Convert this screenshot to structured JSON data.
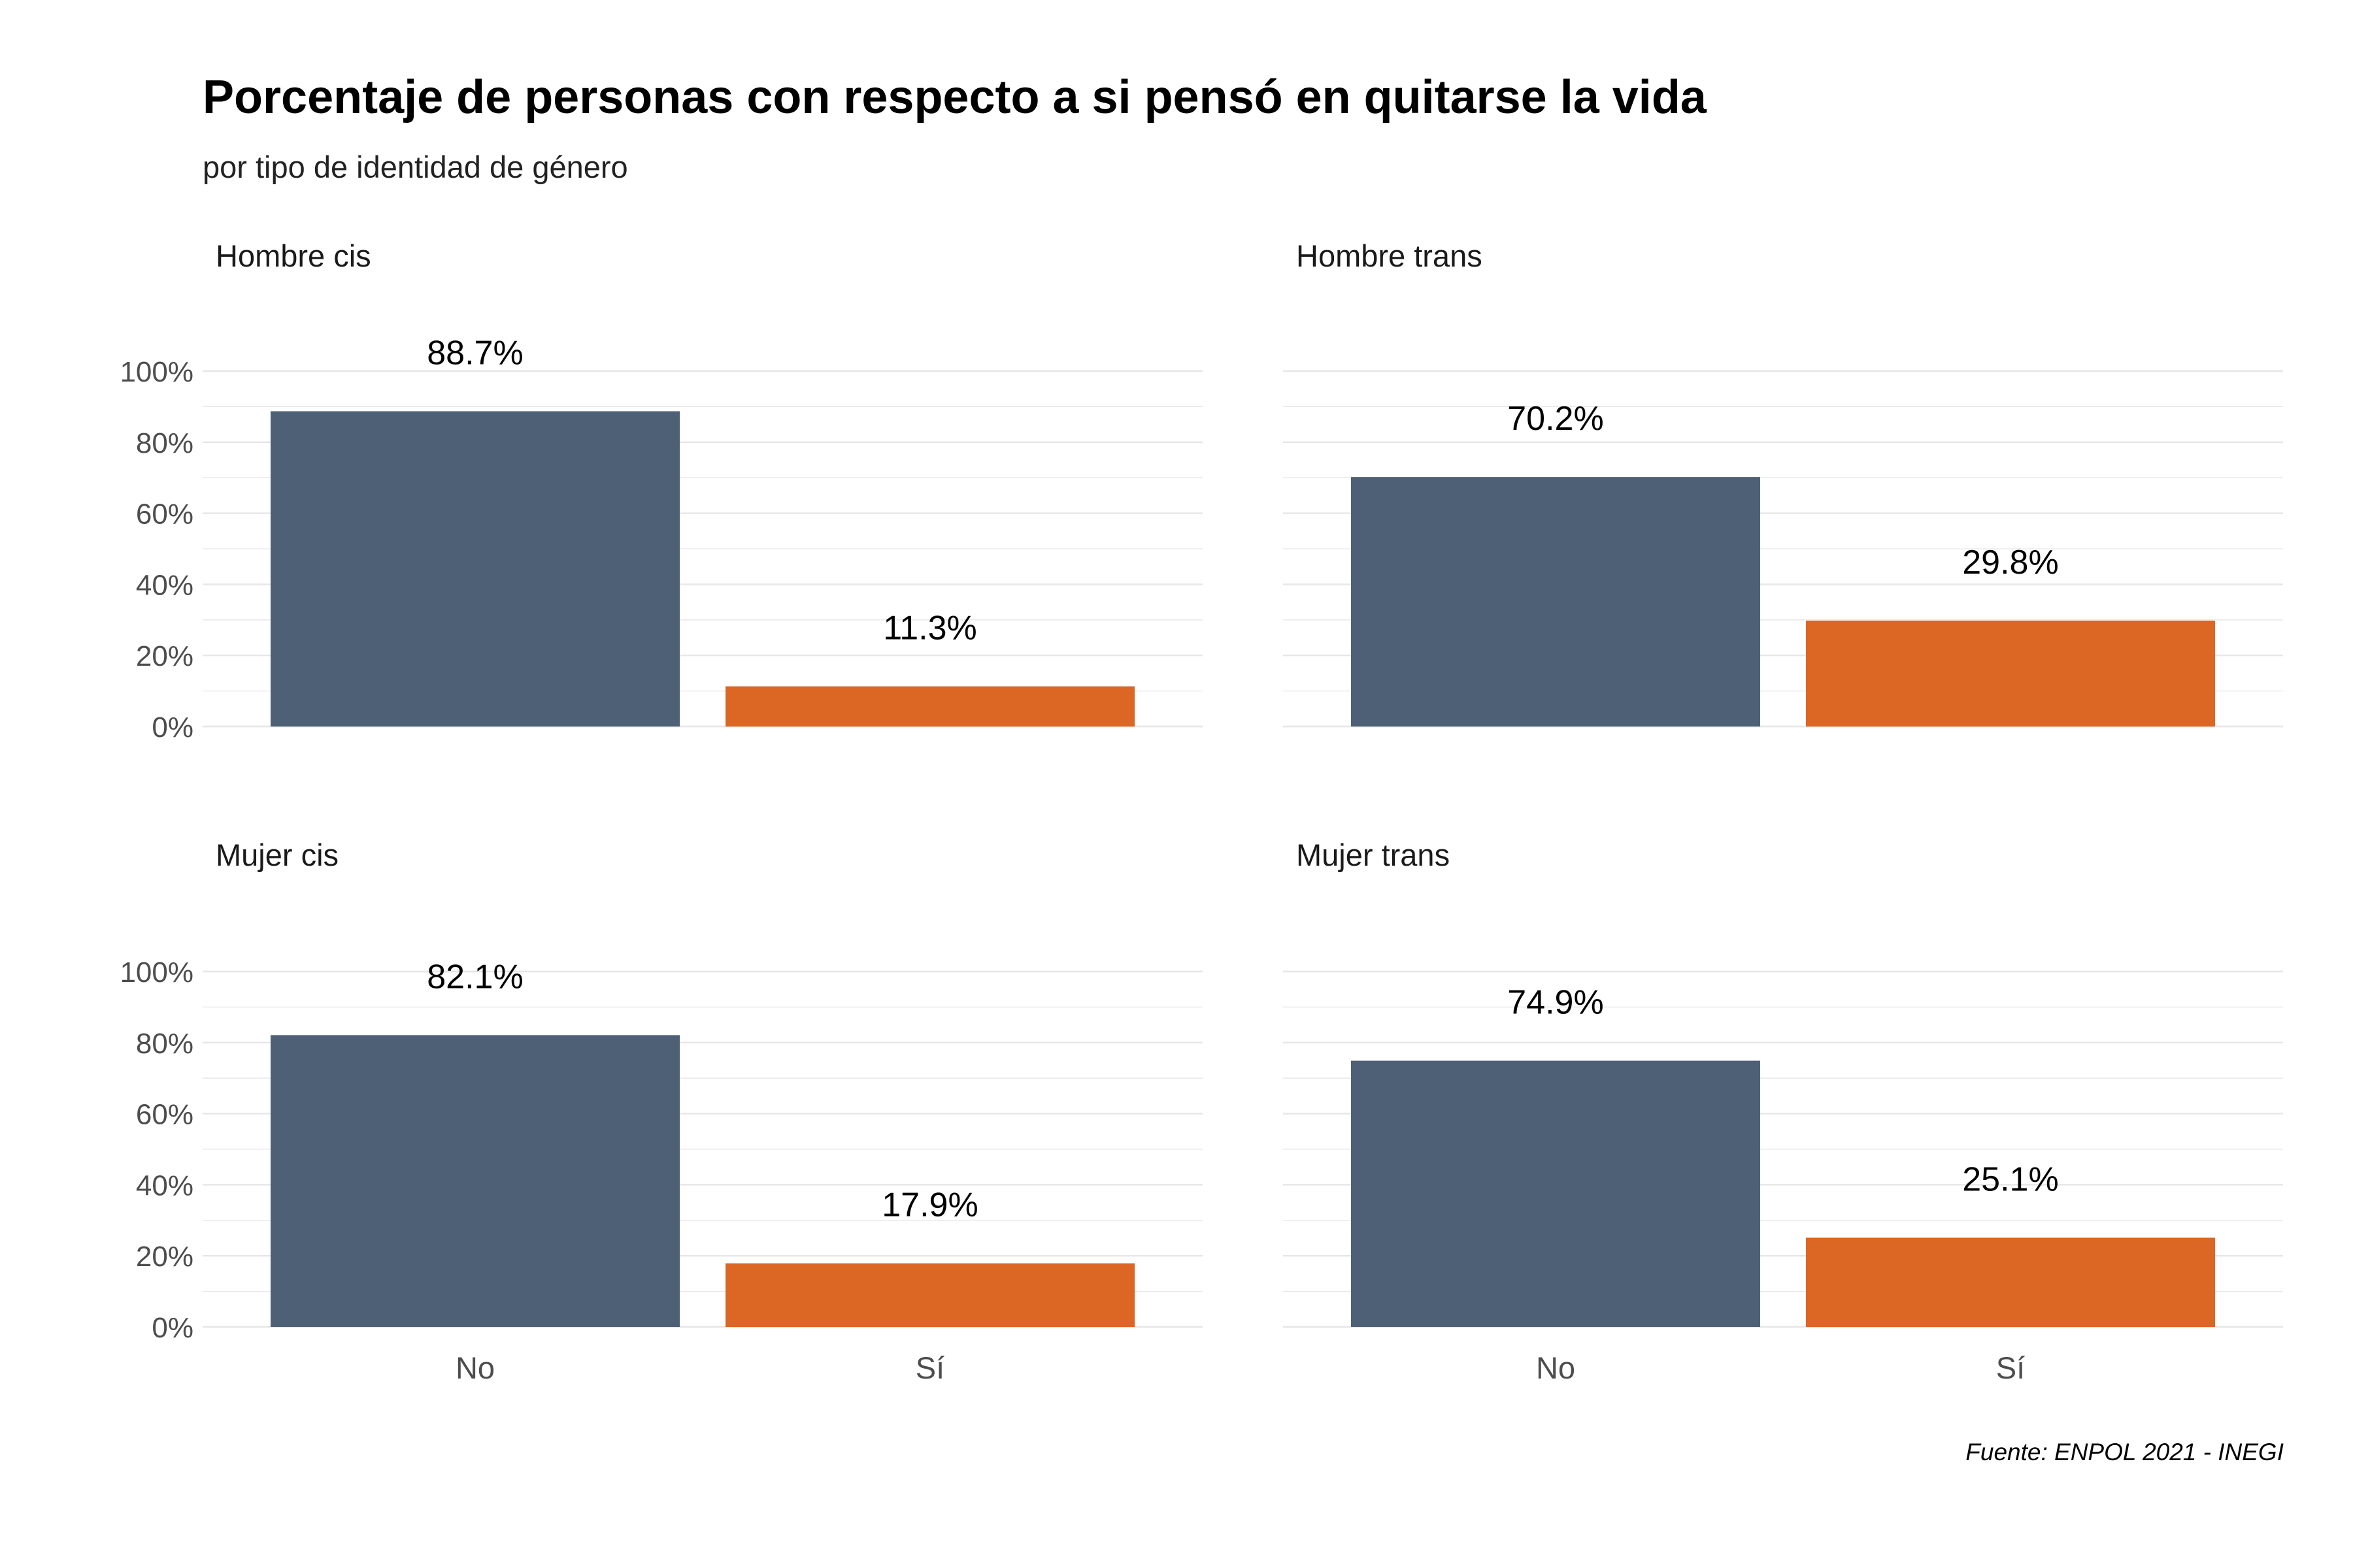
{
  "title": "Porcentaje de personas con respecto a si pensó en quitarse la vida",
  "subtitle": "por tipo de identidad de género",
  "caption": "Fuente: ENPOL 2021 - INEGI",
  "colors": {
    "No": "#4e6075",
    "Sí": "#dc6624",
    "grid": "#e6e6e6",
    "axis_text": "#4d4d4d"
  },
  "chart_data": [
    {
      "type": "bar",
      "panel": "Hombre cis",
      "categories": [
        "No",
        "Sí"
      ],
      "values": [
        88.7,
        11.3
      ],
      "labels": [
        "88.7%",
        "11.3%"
      ],
      "ylim": [
        0,
        100
      ],
      "yticks": [
        "0%",
        "20%",
        "40%",
        "60%",
        "80%",
        "100%"
      ]
    },
    {
      "type": "bar",
      "panel": "Hombre trans",
      "categories": [
        "No",
        "Sí"
      ],
      "values": [
        70.2,
        29.8
      ],
      "labels": [
        "70.2%",
        "29.8%"
      ],
      "ylim": [
        0,
        100
      ],
      "yticks": []
    },
    {
      "type": "bar",
      "panel": "Mujer cis",
      "categories": [
        "No",
        "Sí"
      ],
      "values": [
        82.1,
        17.9
      ],
      "labels": [
        "82.1%",
        "17.9%"
      ],
      "ylim": [
        0,
        100
      ],
      "yticks": [
        "0%",
        "20%",
        "40%",
        "60%",
        "80%",
        "100%"
      ]
    },
    {
      "type": "bar",
      "panel": "Mujer trans",
      "categories": [
        "No",
        "Sí"
      ],
      "values": [
        74.9,
        25.1
      ],
      "labels": [
        "74.9%",
        "25.1%"
      ],
      "ylim": [
        0,
        100
      ],
      "yticks": []
    }
  ],
  "x_tick_labels": [
    "No",
    "Sí"
  ]
}
